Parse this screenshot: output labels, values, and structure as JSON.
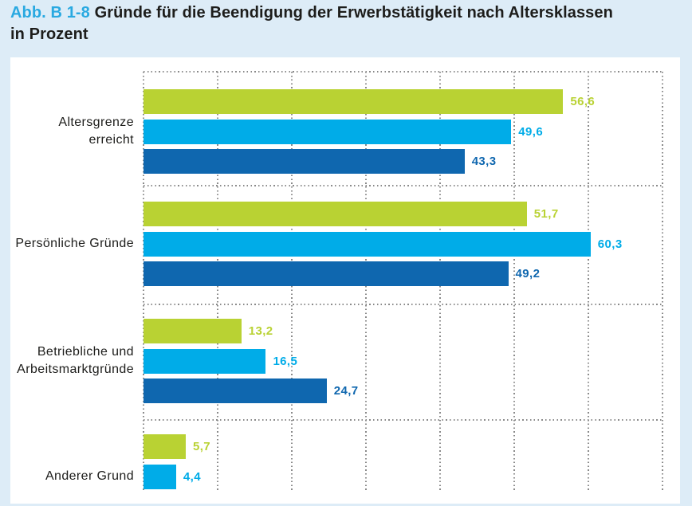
{
  "figure": {
    "label": "Abb. B 1-8",
    "title": "Gründe für die Beendigung der Erwerbstätigkeit nach Altersklassen",
    "subtitle": "in Prozent"
  },
  "colors": {
    "accent_blue": "#29a9e1",
    "series_green": "#b9d233",
    "series_light_blue": "#00ace8",
    "series_dark_blue": "#0f67af",
    "page_background": "#ddecf7",
    "panel_background": "#ffffff",
    "grid_dots": "#8a8a8a",
    "text": "#1d1d1b"
  },
  "chart_data": {
    "type": "bar",
    "orientation": "horizontal",
    "title": "Gründe für die Beendigung der Erwerbstätigkeit nach Altersklassen in Prozent",
    "categories": [
      "Altersgrenze erreicht",
      "Persönliche Gründe",
      "Betriebliche und\nArbeitsmarktgründe",
      "Anderer Grund"
    ],
    "series": [
      {
        "id": "green",
        "color": "#b9d233",
        "values": [
          56.6,
          51.7,
          13.2,
          5.7
        ],
        "labels": [
          "56,6",
          "51,7",
          "13,2",
          "5,7"
        ]
      },
      {
        "id": "light-blue",
        "color": "#00ace8",
        "values": [
          49.6,
          60.3,
          16.5,
          4.4
        ],
        "labels": [
          "49,6",
          "60,3",
          "16,5",
          "4,4"
        ]
      },
      {
        "id": "dark-blue",
        "color": "#0f67af",
        "values": [
          43.3,
          49.2,
          24.7,
          null
        ],
        "labels": [
          "43,3",
          "49,2",
          "24,7",
          null
        ]
      }
    ],
    "xlim": [
      0,
      70
    ],
    "grid": {
      "style": "dotted",
      "x_step": 10
    },
    "legend": "none",
    "value_label_format": "de-comma",
    "note": "third series bar of last category is cut off at image bottom"
  }
}
